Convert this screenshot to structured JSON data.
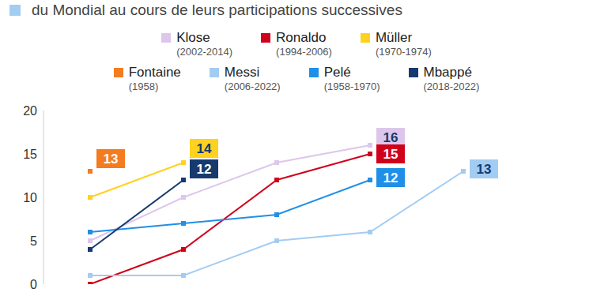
{
  "chart_data": {
    "type": "line",
    "title": "du Mondial au cours de leurs participations successives",
    "categories": [
      null,
      null,
      null,
      null,
      null
    ],
    "series": [
      {
        "name": "Klose",
        "period": "(2002-2014)",
        "color": "#ddc6ec",
        "values": [
          5,
          10,
          14,
          16,
          null
        ]
      },
      {
        "name": "Ronaldo",
        "period": "(1994-2006)",
        "color": "#d0021b",
        "values": [
          0,
          4,
          12,
          15,
          null
        ]
      },
      {
        "name": "Müller",
        "period": "(1970-1974)",
        "color": "#ffd21f",
        "values": [
          10,
          14,
          null,
          null,
          null
        ]
      },
      {
        "name": "Fontaine",
        "period": "(1958)",
        "color": "#f47b20",
        "values": [
          13,
          null,
          null,
          null,
          null
        ]
      },
      {
        "name": "Messi",
        "period": "(2006-2022)",
        "color": "#a3ccf2",
        "values": [
          1,
          1,
          5,
          6,
          13
        ]
      },
      {
        "name": "Pelé",
        "period": "(1958-1970)",
        "color": "#1f8fe8",
        "values": [
          6,
          7,
          8,
          12,
          null
        ]
      },
      {
        "name": "Mbappé",
        "period": "(2018-2022)",
        "color": "#163a6e",
        "values": [
          4,
          12,
          null,
          null,
          null
        ]
      }
    ],
    "ylim": [
      0,
      20
    ],
    "yticks": [
      0,
      5,
      10,
      15,
      20
    ],
    "grid": false,
    "tick_labels": "y",
    "marker": "square",
    "data_labels": true
  }
}
